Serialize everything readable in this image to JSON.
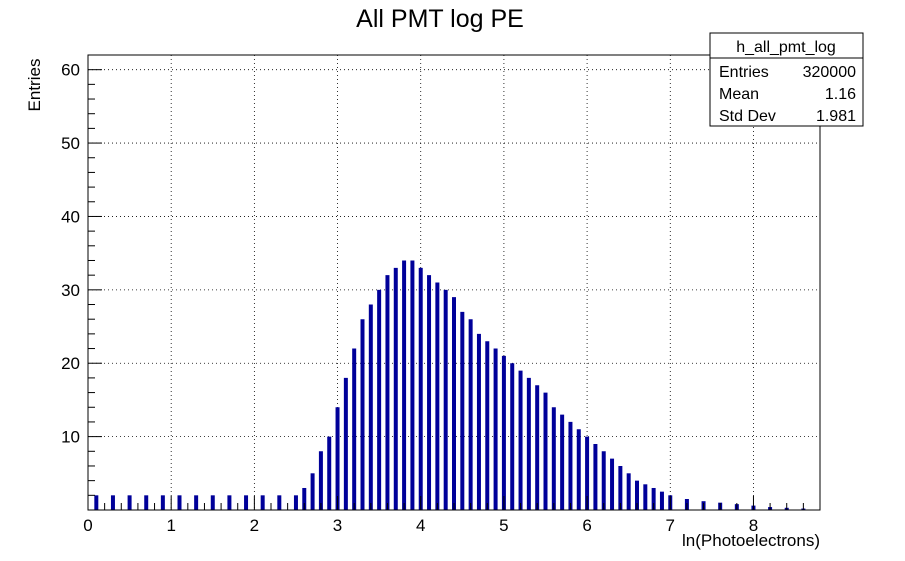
{
  "chart_data": {
    "type": "bar",
    "title": "All PMT log PE",
    "xlabel": "ln(Photoelectrons)",
    "ylabel": "Entries",
    "xlim": [
      0,
      8.8
    ],
    "ylim": [
      0,
      62
    ],
    "x_ticks": [
      "0",
      "1",
      "2",
      "3",
      "4",
      "5",
      "6",
      "7",
      "8"
    ],
    "y_ticks": [
      "10",
      "20",
      "30",
      "40",
      "50",
      "60"
    ],
    "grid": true,
    "line_color": "#000099",
    "stats_box": {
      "name": "h_all_pmt_log",
      "rows": [
        {
          "label": "Entries",
          "value": "320000"
        },
        {
          "label": "Mean",
          "value": "1.16"
        },
        {
          "label": "Std Dev",
          "value": "1.981"
        }
      ]
    },
    "x": [
      0.1,
      0.3,
      0.5,
      0.7,
      0.9,
      1.1,
      1.3,
      1.5,
      1.7,
      1.9,
      2.1,
      2.3,
      2.5,
      2.6,
      2.7,
      2.8,
      2.9,
      3.0,
      3.1,
      3.2,
      3.3,
      3.4,
      3.5,
      3.6,
      3.7,
      3.8,
      3.9,
      4.0,
      4.1,
      4.2,
      4.3,
      4.4,
      4.5,
      4.6,
      4.7,
      4.8,
      4.9,
      5.0,
      5.1,
      5.2,
      5.3,
      5.4,
      5.5,
      5.6,
      5.7,
      5.8,
      5.9,
      6.0,
      6.1,
      6.2,
      6.3,
      6.4,
      6.5,
      6.6,
      6.7,
      6.8,
      6.9,
      7.0,
      7.2,
      7.4,
      7.6,
      7.8,
      8.0,
      8.2,
      8.4,
      8.6
    ],
    "y": [
      2,
      2,
      2,
      2,
      2,
      2,
      2,
      2,
      2,
      2,
      2,
      2,
      2,
      3,
      5,
      8,
      10,
      14,
      18,
      22,
      26,
      28,
      30,
      32,
      33,
      34,
      34,
      33,
      32,
      31,
      30,
      29,
      27,
      26,
      24,
      23,
      22,
      21,
      20,
      19,
      18,
      17,
      16,
      14,
      13,
      12,
      11,
      10,
      9,
      8,
      7,
      6,
      5,
      4,
      3.5,
      3,
      2.5,
      2,
      1.5,
      1.2,
      1,
      0.8,
      0.6,
      0.4,
      0.3,
      0.2
    ]
  }
}
